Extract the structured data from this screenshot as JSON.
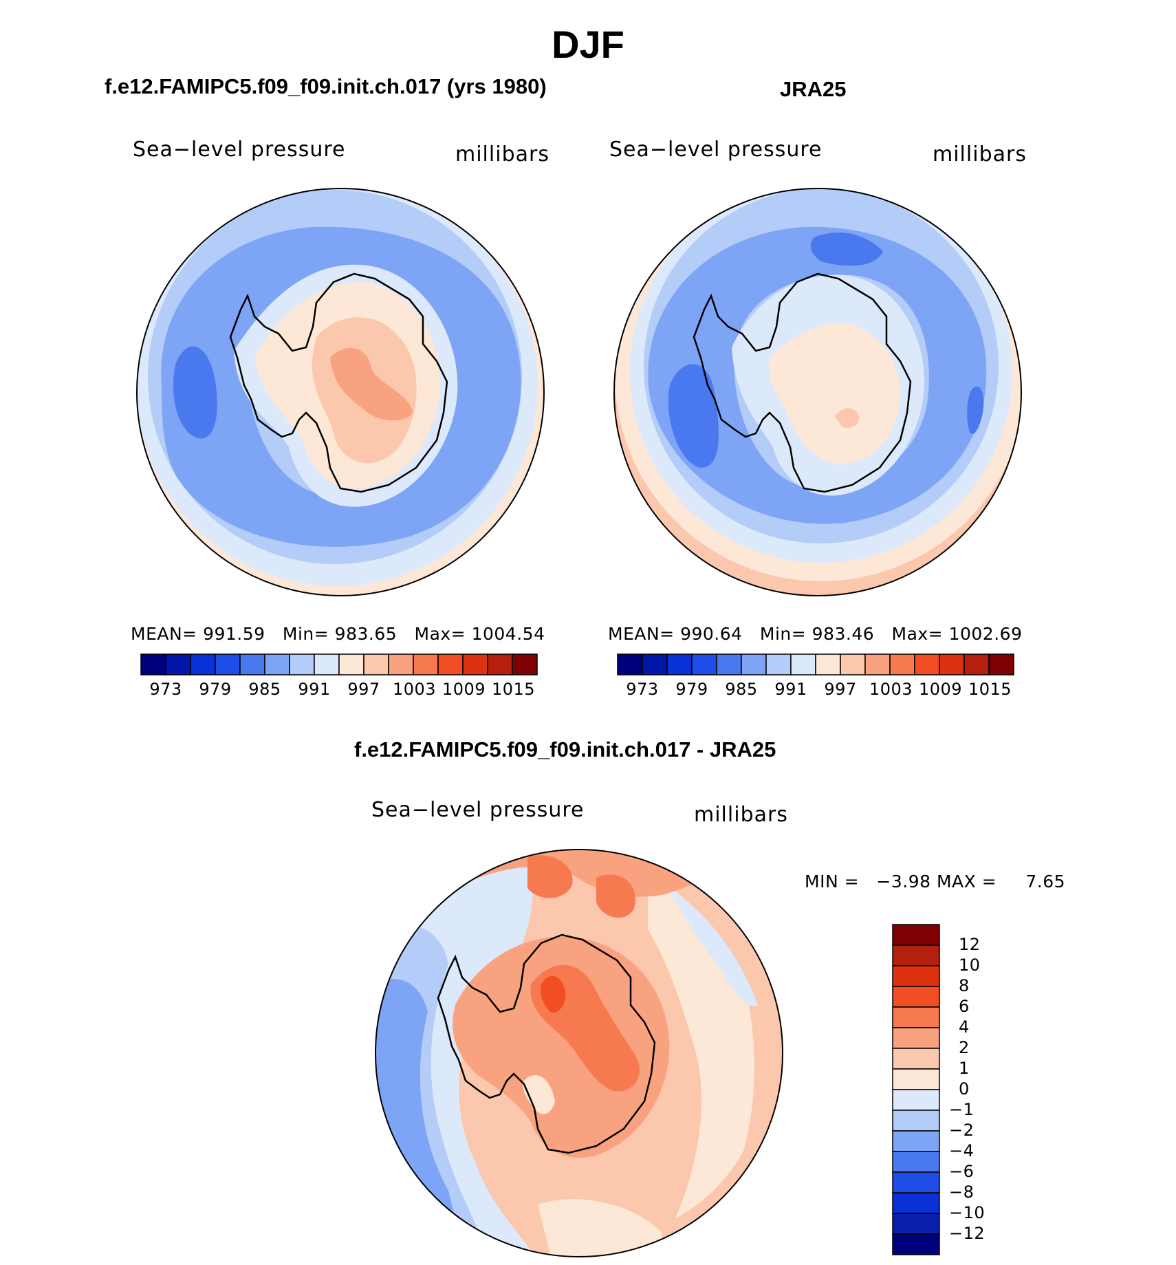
{
  "main_title": "DJF",
  "panels": [
    {
      "title": "f.e12.FAMIPC5.f09_f09.init.ch.017 (yrs 1980)",
      "variable": "Sea−level pressure",
      "units": "millibars",
      "stats": {
        "mean_label": "MEAN=",
        "mean": "991.59",
        "min_label": "Min=",
        "min": "983.65",
        "max_label": "Max=",
        "max": "1004.54"
      },
      "colorbar_ticks": [
        "973",
        "979",
        "985",
        "991",
        "997",
        "1003",
        "1009",
        "1015"
      ]
    },
    {
      "title": "JRA25",
      "variable": "Sea−level pressure",
      "units": "millibars",
      "stats": {
        "mean_label": "MEAN=",
        "mean": "990.64",
        "min_label": "Min=",
        "min": "983.46",
        "max_label": "Max=",
        "max": "1002.69"
      },
      "colorbar_ticks": [
        "973",
        "979",
        "985",
        "991",
        "997",
        "1003",
        "1009",
        "1015"
      ]
    }
  ],
  "difference": {
    "title": "f.e12.FAMIPC5.f09_f09.init.ch.017 - JRA25",
    "variable": "Sea−level pressure",
    "units": "millibars",
    "min_label": "MIN =",
    "min": "−3.98",
    "max_label": "MAX =",
    "max": "7.65",
    "colorbar_ticks": [
      "12",
      "10",
      "8",
      "6",
      "4",
      "2",
      "1",
      "0",
      "−1",
      "−2",
      "−4",
      "−6",
      "−8",
      "−10",
      "−12"
    ]
  },
  "colors": {
    "abs_scale": [
      "#00007f",
      "#0017a9",
      "#0a30d8",
      "#1f4de8",
      "#4a78ef",
      "#7ea4f5",
      "#b3ccf8",
      "#dce9fb",
      "#fde7d7",
      "#fbc7ad",
      "#f9a27f",
      "#f6794f",
      "#f24e24",
      "#dc3210",
      "#b51f0e",
      "#7f0000"
    ],
    "diff_scale": [
      "#00007f",
      "#0a1fae",
      "#0a30d8",
      "#1f4de8",
      "#4a78ef",
      "#7ea4f5",
      "#b3ccf8",
      "#dce9fb",
      "#fde7d7",
      "#fbc7ad",
      "#f9a27f",
      "#f6794f",
      "#f24e24",
      "#dc3210",
      "#b51f0e",
      "#7f0000"
    ],
    "coastline": "#000000"
  }
}
